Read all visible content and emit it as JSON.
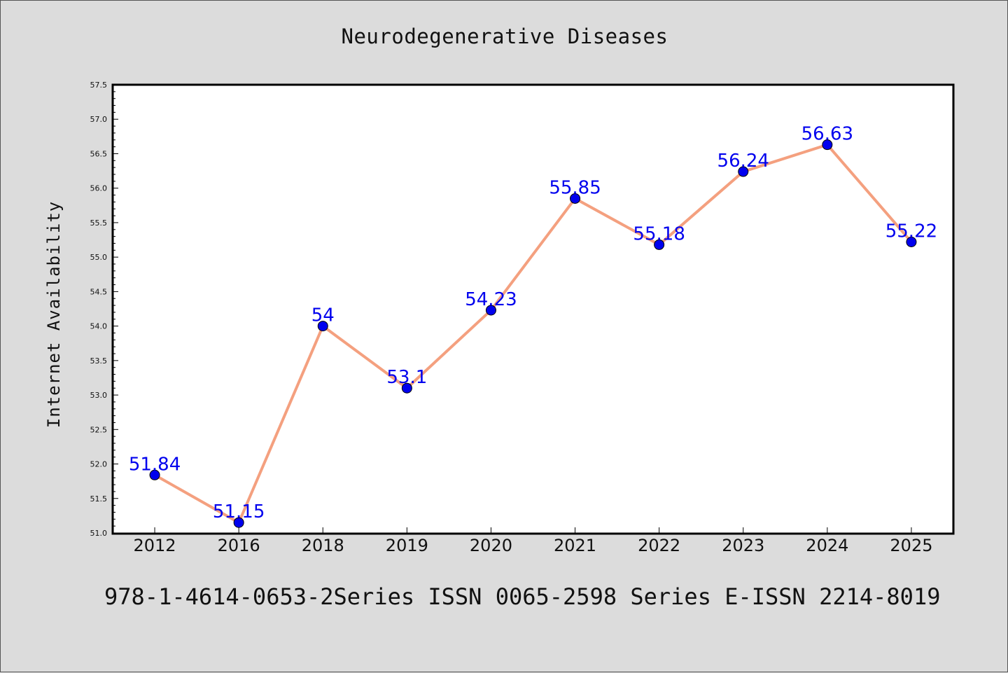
{
  "chart_data": {
    "type": "line",
    "title": "Neurodegenerative Diseases",
    "xlabel": "",
    "ylabel": "Internet Availability",
    "categories": [
      "2012",
      "2016",
      "2018",
      "2019",
      "2020",
      "2021",
      "2022",
      "2023",
      "2024",
      "2025"
    ],
    "series": [
      {
        "values": [
          51.84,
          51.15,
          54,
          53.1,
          54.23,
          55.85,
          55.18,
          56.24,
          56.63,
          55.22
        ],
        "data_labels": [
          "51.84",
          "51.15",
          "54",
          "53.1",
          "54.23",
          "55.85",
          "55.18",
          "56.24",
          "56.63",
          "55.22"
        ],
        "line_color": "#f4a07f",
        "marker_color": "#0000ee"
      }
    ],
    "ylim": [
      51.0,
      57.5
    ],
    "yticks": [
      "51.0",
      "51.5",
      "52.0",
      "52.5",
      "53.0",
      "53.5",
      "54.0",
      "54.5",
      "55.0",
      "55.5",
      "56.0",
      "56.5",
      "57.0",
      "57.5"
    ],
    "grid": false,
    "label_color": "#0000ee"
  },
  "footer": {
    "text": "978-1-4614-0653-2Series ISSN 0065-2598 Series E-ISSN 2214-8019"
  }
}
